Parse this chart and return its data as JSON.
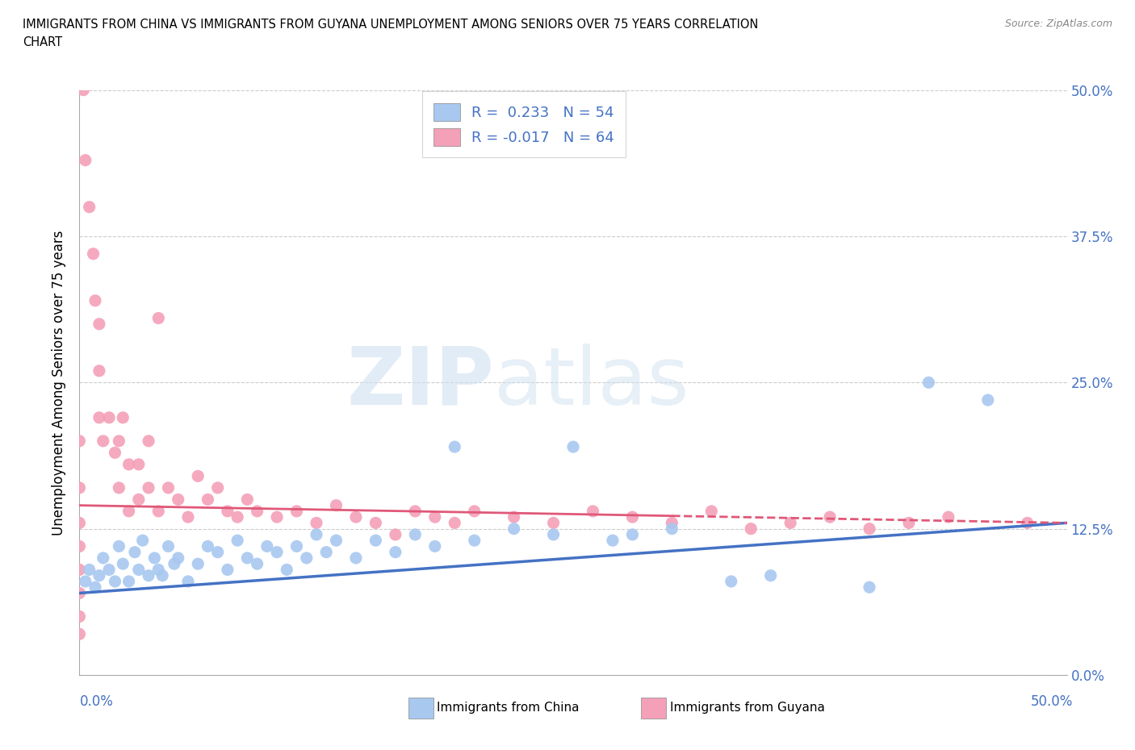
{
  "title_line1": "IMMIGRANTS FROM CHINA VS IMMIGRANTS FROM GUYANA UNEMPLOYMENT AMONG SENIORS OVER 75 YEARS CORRELATION",
  "title_line2": "CHART",
  "source": "Source: ZipAtlas.com",
  "ylabel": "Unemployment Among Seniors over 75 years",
  "ytick_labels": [
    "0.0%",
    "12.5%",
    "25.0%",
    "37.5%",
    "50.0%"
  ],
  "ytick_values": [
    0.0,
    12.5,
    25.0,
    37.5,
    50.0
  ],
  "xlim": [
    0.0,
    50.0
  ],
  "ylim": [
    0.0,
    50.0
  ],
  "watermark_zip": "ZIP",
  "watermark_atlas": "atlas",
  "legend_label_china": "Immigrants from China",
  "legend_label_guyana": "Immigrants from Guyana",
  "R_china": 0.233,
  "N_china": 54,
  "R_guyana": -0.017,
  "N_guyana": 64,
  "china_color": "#A8C8F0",
  "guyana_color": "#F4A0B8",
  "china_line_color": "#4472C4",
  "guyana_line_color": "#E05878",
  "china_trend_x0": 0.0,
  "china_trend_y0": 7.0,
  "china_trend_x1": 50.0,
  "china_trend_y1": 13.0,
  "guyana_trend_x0": 0.0,
  "guyana_trend_y0": 14.5,
  "guyana_trend_x1": 50.0,
  "guyana_trend_y1": 13.0,
  "china_points": [
    [
      0.3,
      8.0
    ],
    [
      0.5,
      9.0
    ],
    [
      0.8,
      7.5
    ],
    [
      1.0,
      8.5
    ],
    [
      1.2,
      10.0
    ],
    [
      1.5,
      9.0
    ],
    [
      1.8,
      8.0
    ],
    [
      2.0,
      11.0
    ],
    [
      2.2,
      9.5
    ],
    [
      2.5,
      8.0
    ],
    [
      2.8,
      10.5
    ],
    [
      3.0,
      9.0
    ],
    [
      3.2,
      11.5
    ],
    [
      3.5,
      8.5
    ],
    [
      3.8,
      10.0
    ],
    [
      4.0,
      9.0
    ],
    [
      4.2,
      8.5
    ],
    [
      4.5,
      11.0
    ],
    [
      4.8,
      9.5
    ],
    [
      5.0,
      10.0
    ],
    [
      5.5,
      8.0
    ],
    [
      6.0,
      9.5
    ],
    [
      6.5,
      11.0
    ],
    [
      7.0,
      10.5
    ],
    [
      7.5,
      9.0
    ],
    [
      8.0,
      11.5
    ],
    [
      8.5,
      10.0
    ],
    [
      9.0,
      9.5
    ],
    [
      9.5,
      11.0
    ],
    [
      10.0,
      10.5
    ],
    [
      10.5,
      9.0
    ],
    [
      11.0,
      11.0
    ],
    [
      11.5,
      10.0
    ],
    [
      12.0,
      12.0
    ],
    [
      12.5,
      10.5
    ],
    [
      13.0,
      11.5
    ],
    [
      14.0,
      10.0
    ],
    [
      15.0,
      11.5
    ],
    [
      16.0,
      10.5
    ],
    [
      17.0,
      12.0
    ],
    [
      18.0,
      11.0
    ],
    [
      19.0,
      19.5
    ],
    [
      20.0,
      11.5
    ],
    [
      22.0,
      12.5
    ],
    [
      24.0,
      12.0
    ],
    [
      25.0,
      19.5
    ],
    [
      27.0,
      11.5
    ],
    [
      28.0,
      12.0
    ],
    [
      30.0,
      12.5
    ],
    [
      33.0,
      8.0
    ],
    [
      35.0,
      8.5
    ],
    [
      40.0,
      7.5
    ],
    [
      43.0,
      25.0
    ],
    [
      46.0,
      23.5
    ]
  ],
  "guyana_points": [
    [
      0.0,
      20.0
    ],
    [
      0.0,
      16.0
    ],
    [
      0.0,
      13.0
    ],
    [
      0.0,
      11.0
    ],
    [
      0.0,
      9.0
    ],
    [
      0.0,
      7.0
    ],
    [
      0.0,
      5.0
    ],
    [
      0.0,
      3.5
    ],
    [
      0.2,
      50.0
    ],
    [
      0.3,
      44.0
    ],
    [
      0.5,
      40.0
    ],
    [
      0.7,
      36.0
    ],
    [
      0.8,
      32.0
    ],
    [
      1.0,
      30.0
    ],
    [
      1.0,
      26.0
    ],
    [
      1.0,
      22.0
    ],
    [
      1.2,
      20.0
    ],
    [
      1.5,
      22.0
    ],
    [
      1.8,
      19.0
    ],
    [
      2.0,
      20.0
    ],
    [
      2.0,
      16.0
    ],
    [
      2.2,
      22.0
    ],
    [
      2.5,
      18.0
    ],
    [
      2.5,
      14.0
    ],
    [
      3.0,
      18.0
    ],
    [
      3.0,
      15.0
    ],
    [
      3.5,
      20.0
    ],
    [
      3.5,
      16.0
    ],
    [
      4.0,
      30.5
    ],
    [
      4.0,
      14.0
    ],
    [
      4.5,
      16.0
    ],
    [
      5.0,
      15.0
    ],
    [
      5.5,
      13.5
    ],
    [
      6.0,
      17.0
    ],
    [
      6.5,
      15.0
    ],
    [
      7.0,
      16.0
    ],
    [
      7.5,
      14.0
    ],
    [
      8.0,
      13.5
    ],
    [
      8.5,
      15.0
    ],
    [
      9.0,
      14.0
    ],
    [
      10.0,
      13.5
    ],
    [
      11.0,
      14.0
    ],
    [
      12.0,
      13.0
    ],
    [
      13.0,
      14.5
    ],
    [
      14.0,
      13.5
    ],
    [
      15.0,
      13.0
    ],
    [
      16.0,
      12.0
    ],
    [
      17.0,
      14.0
    ],
    [
      18.0,
      13.5
    ],
    [
      19.0,
      13.0
    ],
    [
      20.0,
      14.0
    ],
    [
      22.0,
      13.5
    ],
    [
      24.0,
      13.0
    ],
    [
      26.0,
      14.0
    ],
    [
      28.0,
      13.5
    ],
    [
      30.0,
      13.0
    ],
    [
      32.0,
      14.0
    ],
    [
      34.0,
      12.5
    ],
    [
      36.0,
      13.0
    ],
    [
      38.0,
      13.5
    ],
    [
      40.0,
      12.5
    ],
    [
      42.0,
      13.0
    ],
    [
      44.0,
      13.5
    ],
    [
      48.0,
      13.0
    ]
  ]
}
